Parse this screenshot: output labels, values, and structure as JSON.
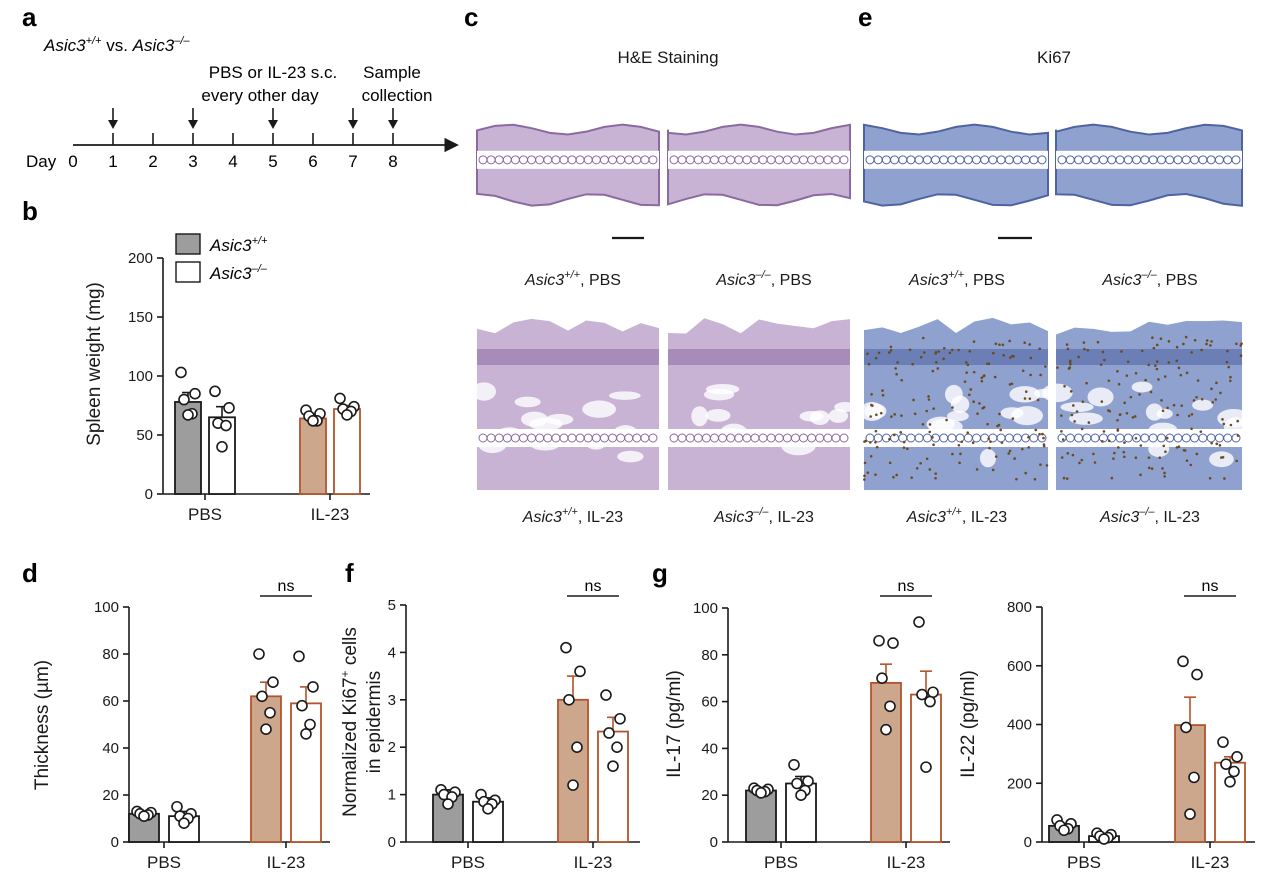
{
  "panels": {
    "a": {
      "label": "a",
      "genotype_a": "Asic3",
      "genotype_a_sup": "+/+",
      "vs_text": " vs. ",
      "genotype_b": "Asic3",
      "genotype_b_sup": "–/–",
      "treatment_line1": "PBS or IL-23 s.c.",
      "treatment_line2": "every other day",
      "sample_line1": "Sample",
      "sample_line2": "collection",
      "day_label": "Day",
      "days": [
        "0",
        "1",
        "2",
        "3",
        "4",
        "5",
        "6",
        "7",
        "8"
      ],
      "arrow_days": [
        1,
        3,
        5,
        7,
        8
      ]
    },
    "c": {
      "label": "c",
      "title": "H&E Staining",
      "captions": [
        {
          "gene": "Asic3",
          "sup": "+/+",
          "rest": ", PBS"
        },
        {
          "gene": "Asic3",
          "sup": "–/–",
          "rest": ", PBS"
        },
        {
          "gene": "Asic3",
          "sup": "+/+",
          "rest": ", IL-23"
        },
        {
          "gene": "Asic3",
          "sup": "–/–",
          "rest": ", IL-23"
        }
      ]
    },
    "e": {
      "label": "e",
      "title": "Ki67",
      "captions": [
        {
          "gene": "Asic3",
          "sup": "+/+",
          "rest": ", PBS"
        },
        {
          "gene": "Asic3",
          "sup": "–/–",
          "rest": ", PBS"
        },
        {
          "gene": "Asic3",
          "sup": "+/+",
          "rest": ", IL-23"
        },
        {
          "gene": "Asic3",
          "sup": "–/–",
          "rest": ", IL-23"
        }
      ]
    }
  },
  "legend": {
    "entries": [
      {
        "gene": "Asic3",
        "sup": "+/+",
        "style": "filled"
      },
      {
        "gene": "Asic3",
        "sup": "–/–",
        "style": "open"
      }
    ]
  },
  "colors": {
    "axis": "#1a1a1a",
    "pbs_fill": "#9d9d9d",
    "il23_fill": "#cda78c",
    "il23_edge": "#b3542c",
    "open_fill": "#ffffff",
    "he_tissue": "#c9b3d4",
    "ki67_tissue": "#8fa2cf",
    "ki67_nuclei": "#6b4a1e"
  },
  "chart_data": [
    {
      "id": "b",
      "label": "b",
      "type": "bar",
      "title": "",
      "ylabel": "Spleen weight (mg)",
      "ylim": [
        0,
        200
      ],
      "yticks": [
        0,
        50,
        100,
        150,
        200
      ],
      "categories": [
        "PBS",
        "IL-23"
      ],
      "series": [
        {
          "name": "Asic3+/+",
          "values": [
            78,
            64
          ],
          "errors": [
            8,
            4
          ],
          "points": [
            [
              103,
              85,
              80,
              68,
              67
            ],
            [
              71,
              68,
              66,
              62,
              62
            ]
          ]
        },
        {
          "name": "Asic3–/–",
          "values": [
            65,
            72
          ],
          "errors": [
            9,
            3
          ],
          "points": [
            [
              87,
              73,
              60,
              58,
              40
            ],
            [
              81,
              74,
              72,
              70,
              67
            ]
          ]
        }
      ],
      "significance": []
    },
    {
      "id": "d",
      "label": "d",
      "type": "bar",
      "title": "",
      "ylabel": "Thickness (µm)",
      "ylim": [
        0,
        100
      ],
      "yticks": [
        0,
        20,
        40,
        60,
        80,
        100
      ],
      "categories": [
        "PBS",
        "IL-23"
      ],
      "series": [
        {
          "name": "Asic3+/+",
          "values": [
            12,
            62
          ],
          "errors": [
            1,
            6
          ],
          "points": [
            [
              13,
              12.5,
              12,
              11.5,
              11
            ],
            [
              80,
              68,
              62,
              55,
              48
            ]
          ]
        },
        {
          "name": "Asic3–/–",
          "values": [
            11,
            59
          ],
          "errors": [
            2,
            7
          ],
          "points": [
            [
              15,
              12,
              11,
              10,
              8
            ],
            [
              79,
              66,
              58,
              50,
              46
            ]
          ]
        }
      ],
      "significance": [
        {
          "text": "ns",
          "category": 1
        }
      ]
    },
    {
      "id": "f",
      "label": "f",
      "type": "bar",
      "title": "",
      "ylabel_line1": "Normalized Ki67",
      "ylabel_sup": "+",
      "ylabel_line1_end": " cells",
      "ylabel_line2": "in epidermis",
      "ylim": [
        0,
        5
      ],
      "yticks": [
        0,
        1,
        2,
        3,
        4,
        5
      ],
      "categories": [
        "PBS",
        "IL-23"
      ],
      "series": [
        {
          "name": "Asic3+/+",
          "values": [
            1.0,
            3.0
          ],
          "errors": [
            0.1,
            0.5
          ],
          "points": [
            [
              1.1,
              1.05,
              1.0,
              0.95,
              0.8
            ],
            [
              4.1,
              3.6,
              3.0,
              2.0,
              1.2
            ]
          ]
        },
        {
          "name": "Asic3–/–",
          "values": [
            0.85,
            2.33
          ],
          "errors": [
            0.08,
            0.3
          ],
          "points": [
            [
              1.0,
              0.88,
              0.85,
              0.8,
              0.7
            ],
            [
              3.1,
              2.6,
              2.3,
              2.0,
              1.6
            ]
          ]
        }
      ],
      "significance": [
        {
          "text": "ns",
          "category": 1
        }
      ]
    },
    {
      "id": "g1",
      "label": "g",
      "type": "bar",
      "title": "",
      "ylabel": "IL-17 (pg/ml)",
      "ylim": [
        0,
        100
      ],
      "yticks": [
        0,
        20,
        40,
        60,
        80,
        100
      ],
      "categories": [
        "PBS",
        "IL-23"
      ],
      "series": [
        {
          "name": "Asic3+/+",
          "values": [
            22,
            68
          ],
          "errors": [
            1,
            8
          ],
          "points": [
            [
              23,
              22.5,
              22,
              21.5,
              21
            ],
            [
              86,
              85,
              70,
              58,
              48
            ]
          ]
        },
        {
          "name": "Asic3–/–",
          "values": [
            25,
            63
          ],
          "errors": [
            3,
            10
          ],
          "points": [
            [
              33,
              26,
              25,
              22,
              20
            ],
            [
              94,
              64,
              63,
              60,
              32
            ]
          ]
        }
      ],
      "significance": [
        {
          "text": "ns",
          "category": 1
        }
      ]
    },
    {
      "id": "g2",
      "label": "",
      "type": "bar",
      "title": "",
      "ylabel": "IL-22 (pg/ml)",
      "ylim": [
        0,
        800
      ],
      "yticks": [
        0,
        200,
        400,
        600,
        800
      ],
      "categories": [
        "PBS",
        "IL-23"
      ],
      "series": [
        {
          "name": "Asic3+/+",
          "values": [
            55,
            398
          ],
          "errors": [
            8,
            95
          ],
          "points": [
            [
              75,
              62,
              55,
              45,
              40
            ],
            [
              615,
              570,
              390,
              220,
              95
            ]
          ]
        },
        {
          "name": "Asic3–/–",
          "values": [
            20,
            270
          ],
          "errors": [
            5,
            20
          ],
          "points": [
            [
              30,
              25,
              20,
              15,
              10
            ],
            [
              340,
              290,
              265,
              240,
              205
            ]
          ]
        }
      ],
      "significance": [
        {
          "text": "ns",
          "category": 1
        }
      ]
    }
  ]
}
